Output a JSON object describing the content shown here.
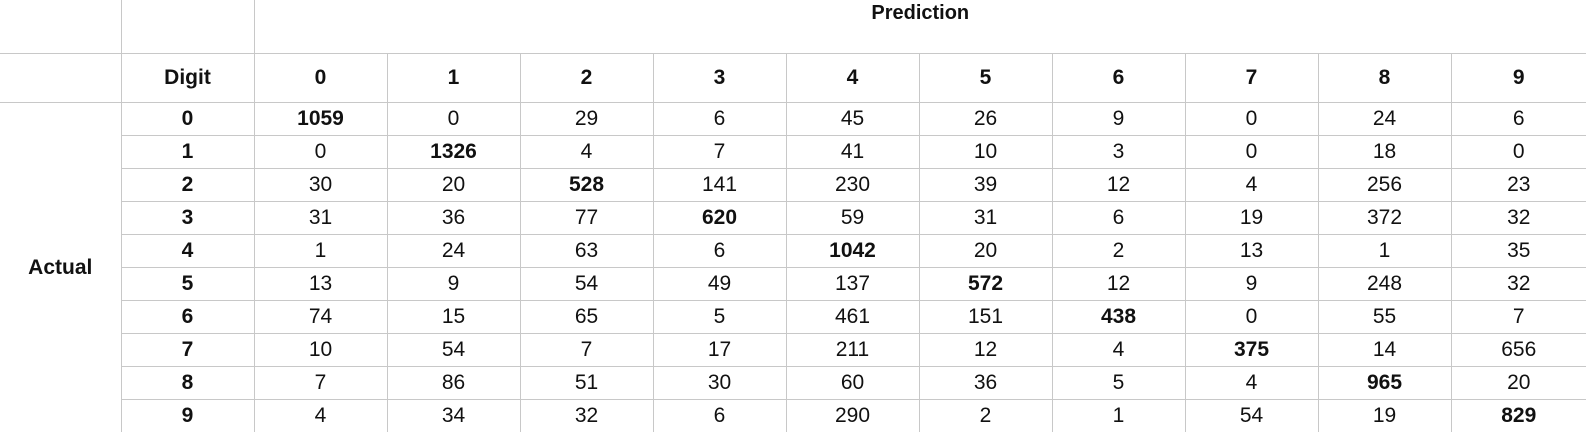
{
  "chart_data": {
    "type": "table",
    "title": "Prediction",
    "row_label": "Actual",
    "corner_label": "Digit",
    "columns": [
      "0",
      "1",
      "2",
      "3",
      "4",
      "5",
      "6",
      "7",
      "8",
      "9"
    ],
    "rows": [
      "0",
      "1",
      "2",
      "3",
      "4",
      "5",
      "6",
      "7",
      "8",
      "9"
    ],
    "values": [
      [
        1059,
        0,
        29,
        6,
        45,
        26,
        9,
        0,
        24,
        6
      ],
      [
        0,
        1326,
        4,
        7,
        41,
        10,
        3,
        0,
        18,
        0
      ],
      [
        30,
        20,
        528,
        141,
        230,
        39,
        12,
        4,
        256,
        23
      ],
      [
        31,
        36,
        77,
        620,
        59,
        31,
        6,
        19,
        372,
        32
      ],
      [
        1,
        24,
        63,
        6,
        1042,
        20,
        2,
        13,
        1,
        35
      ],
      [
        13,
        9,
        54,
        49,
        137,
        572,
        12,
        9,
        248,
        32
      ],
      [
        74,
        15,
        65,
        5,
        461,
        151,
        438,
        0,
        55,
        7
      ],
      [
        10,
        54,
        7,
        17,
        211,
        12,
        4,
        375,
        14,
        656
      ],
      [
        7,
        86,
        51,
        30,
        60,
        36,
        5,
        4,
        965,
        20
      ],
      [
        4,
        34,
        32,
        6,
        290,
        2,
        1,
        54,
        19,
        829
      ]
    ],
    "bold_diagonal": true
  }
}
